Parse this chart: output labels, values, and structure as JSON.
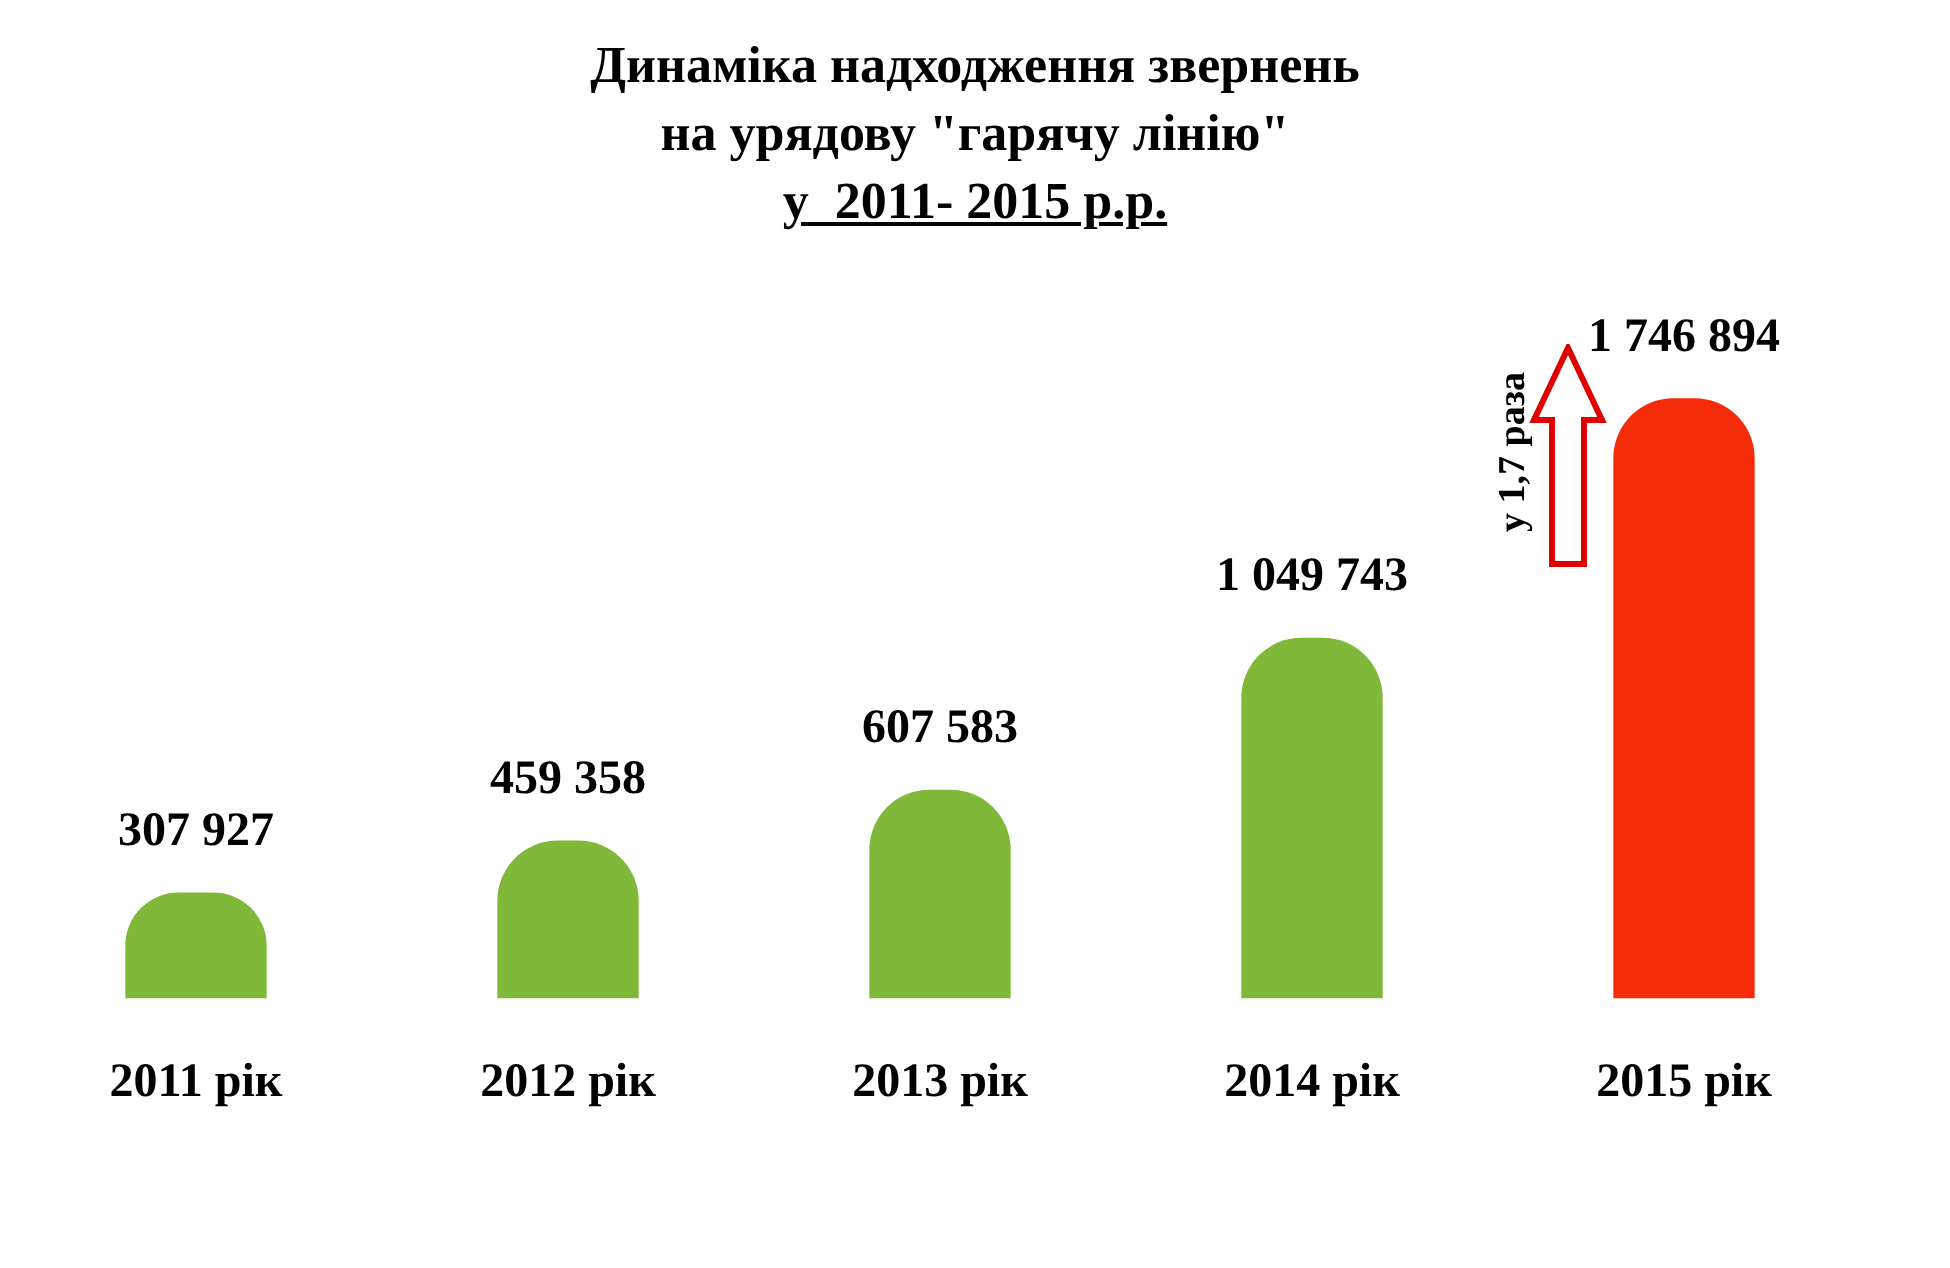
{
  "chart_data": {
    "type": "bar",
    "title": "Динаміка надходження звернень\nна урядову \"гарячу лінію\"",
    "subtitle": "у  2011- 2015 р.р.",
    "categories": [
      "2011 рік",
      "2012 рік",
      "2013 рік",
      "2014 рік",
      "2015 рік"
    ],
    "values": [
      307927,
      459358,
      607583,
      1049743,
      1746894
    ],
    "colors": [
      "#80b83a",
      "#80b83a",
      "#80b83a",
      "#80b83a",
      "#f52c0a"
    ],
    "value_labels": [
      "307 927",
      "459 358",
      "607 583",
      "1 049 743",
      "1 746 894"
    ],
    "annotations": [
      "у 1,7 раза"
    ],
    "grid": false,
    "legend": false
  }
}
